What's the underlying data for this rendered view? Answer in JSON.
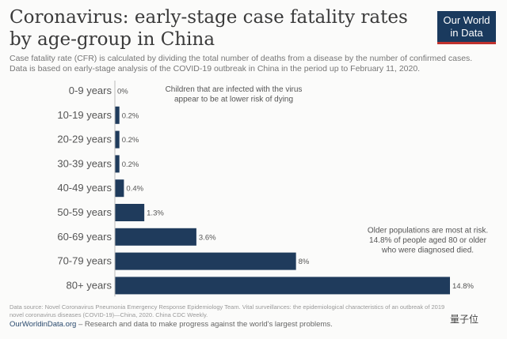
{
  "header": {
    "title": "Coronavirus: early-stage case fatality rates by age-group in China",
    "subtitle_line1": "Case fatality rate (CFR) is calculated by dividing the total number of deaths from a disease by the number of confirmed cases.",
    "subtitle_line2": "Data is based on early-stage analysis of the COVID-19 outbreak in China in the period up to February 11, 2020.",
    "logo_line1": "Our World",
    "logo_line2": "in Data"
  },
  "footer": {
    "source": "Data source: Novel Coronavirus Pneumonia Emergency Response Epidemiology Team. Vital surveillances: the epidemiological characteristics of an outbreak of 2019 novel coronavirus diseases (COVID-19)—China, 2020. China CDC Weekly.",
    "site": "OurWorldinData.org",
    "tagline": " – Research and data to make progress against the world's largest problems.",
    "watermark": "量子位"
  },
  "chart_data": {
    "type": "bar",
    "orientation": "horizontal",
    "categories": [
      "0-9 years",
      "10-19 years",
      "20-29 years",
      "30-39 years",
      "40-49 years",
      "50-59 years",
      "60-69 years",
      "70-79 years",
      "80+ years"
    ],
    "values": [
      0,
      0.2,
      0.2,
      0.2,
      0.4,
      1.3,
      3.6,
      8,
      14.8
    ],
    "value_labels": [
      "0%",
      "0.2%",
      "0.2%",
      "0.2%",
      "0.4%",
      "1.3%",
      "3.6%",
      "8%",
      "14.8%"
    ],
    "xlim": [
      0,
      14.8
    ],
    "bar_color": "#1f3b5c",
    "annotations": [
      {
        "lines": [
          "Children that are infected with the virus",
          "appear to be at lower risk of dying"
        ],
        "category": "0-9 years"
      },
      {
        "lines": [
          "Older populations are most at risk.",
          "14.8% of people aged 80 or older",
          "who were diagnosed died."
        ],
        "category": "70-79 years"
      }
    ]
  }
}
